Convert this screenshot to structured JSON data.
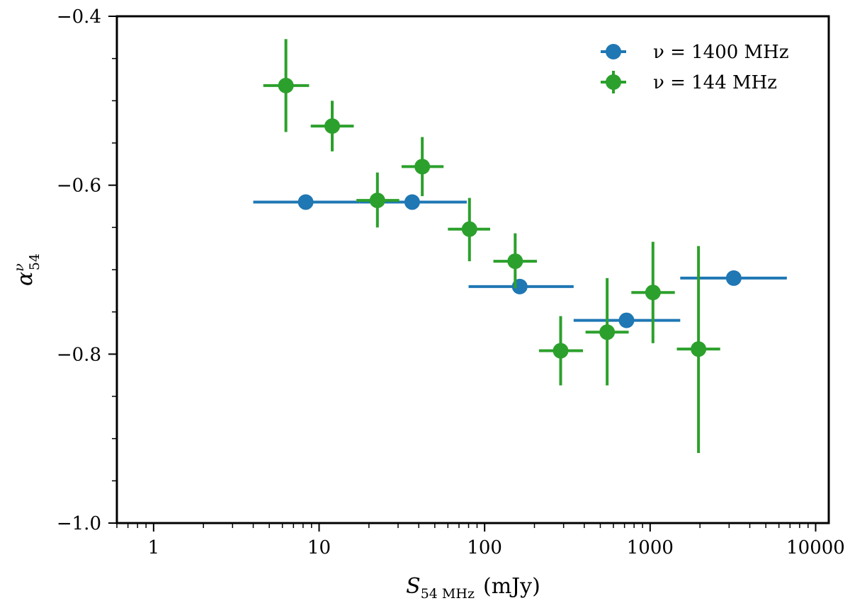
{
  "chart_data": {
    "type": "scatter",
    "title": "",
    "xlabel": "S",
    "xlabel_sub": "54 MHz",
    "xlabel_unit": "(mJy)",
    "ylabel": "α",
    "ylabel_sup": "ν",
    "ylabel_sub": "54",
    "xscale": "log",
    "xlim": [
      0.6,
      12000
    ],
    "ylim": [
      -1.0,
      -0.4
    ],
    "x_ticks": [
      {
        "value": 1,
        "label": "1"
      },
      {
        "value": 10,
        "label": "10"
      },
      {
        "value": 100,
        "label": "100"
      },
      {
        "value": 1000,
        "label": "1000"
      },
      {
        "value": 10000,
        "label": "10000"
      }
    ],
    "y_ticks": [
      {
        "value": -0.4,
        "label": "−0.4"
      },
      {
        "value": -0.6,
        "label": "−0.6"
      },
      {
        "value": -0.8,
        "label": "−0.8"
      },
      {
        "value": -1.0,
        "label": "−1.0"
      }
    ],
    "y_minor_step": 0.05,
    "legend_position": "top-right",
    "series": [
      {
        "name": "ν = 1400 MHz",
        "legend_label": "ν = 1400 MHz",
        "color": "#1f77b4",
        "points": [
          {
            "x": 8.3,
            "y": -0.62,
            "xlo": 4.0,
            "xhi": 17.5,
            "ylo": -0.62,
            "yhi": -0.62
          },
          {
            "x": 36.5,
            "y": -0.62,
            "xlo": 17.5,
            "xhi": 78,
            "ylo": -0.62,
            "yhi": -0.62
          },
          {
            "x": 163,
            "y": -0.72,
            "xlo": 80,
            "xhi": 345,
            "ylo": -0.72,
            "yhi": -0.72
          },
          {
            "x": 720,
            "y": -0.76,
            "xlo": 345,
            "xhi": 1520,
            "ylo": -0.76,
            "yhi": -0.76
          },
          {
            "x": 3200,
            "y": -0.71,
            "xlo": 1520,
            "xhi": 6700,
            "ylo": -0.71,
            "yhi": -0.71
          }
        ]
      },
      {
        "name": "ν = 144 MHz",
        "legend_label": "ν = 144 MHz",
        "color": "#2ca02c",
        "points": [
          {
            "x": 6.3,
            "y": -0.482,
            "xlo": 4.6,
            "xhi": 8.7,
            "ylo": -0.537,
            "yhi": -0.427
          },
          {
            "x": 12.0,
            "y": -0.53,
            "xlo": 8.9,
            "xhi": 16.2,
            "ylo": -0.56,
            "yhi": -0.5
          },
          {
            "x": 22.5,
            "y": -0.618,
            "xlo": 16.8,
            "xhi": 30.5,
            "ylo": -0.65,
            "yhi": -0.585
          },
          {
            "x": 42.0,
            "y": -0.578,
            "xlo": 31.5,
            "xhi": 56.5,
            "ylo": -0.613,
            "yhi": -0.543
          },
          {
            "x": 81,
            "y": -0.652,
            "xlo": 60,
            "xhi": 108,
            "ylo": -0.69,
            "yhi": -0.615
          },
          {
            "x": 153,
            "y": -0.69,
            "xlo": 113,
            "xhi": 207,
            "ylo": -0.722,
            "yhi": -0.657
          },
          {
            "x": 288,
            "y": -0.796,
            "xlo": 213,
            "xhi": 393,
            "ylo": -0.837,
            "yhi": -0.755
          },
          {
            "x": 550,
            "y": -0.774,
            "xlo": 407,
            "xhi": 742,
            "ylo": -0.837,
            "yhi": -0.71
          },
          {
            "x": 1040,
            "y": -0.727,
            "xlo": 770,
            "xhi": 1410,
            "ylo": -0.787,
            "yhi": -0.667
          },
          {
            "x": 1960,
            "y": -0.794,
            "xlo": 1450,
            "xhi": 2650,
            "ylo": -0.917,
            "yhi": -0.672
          }
        ]
      }
    ]
  }
}
